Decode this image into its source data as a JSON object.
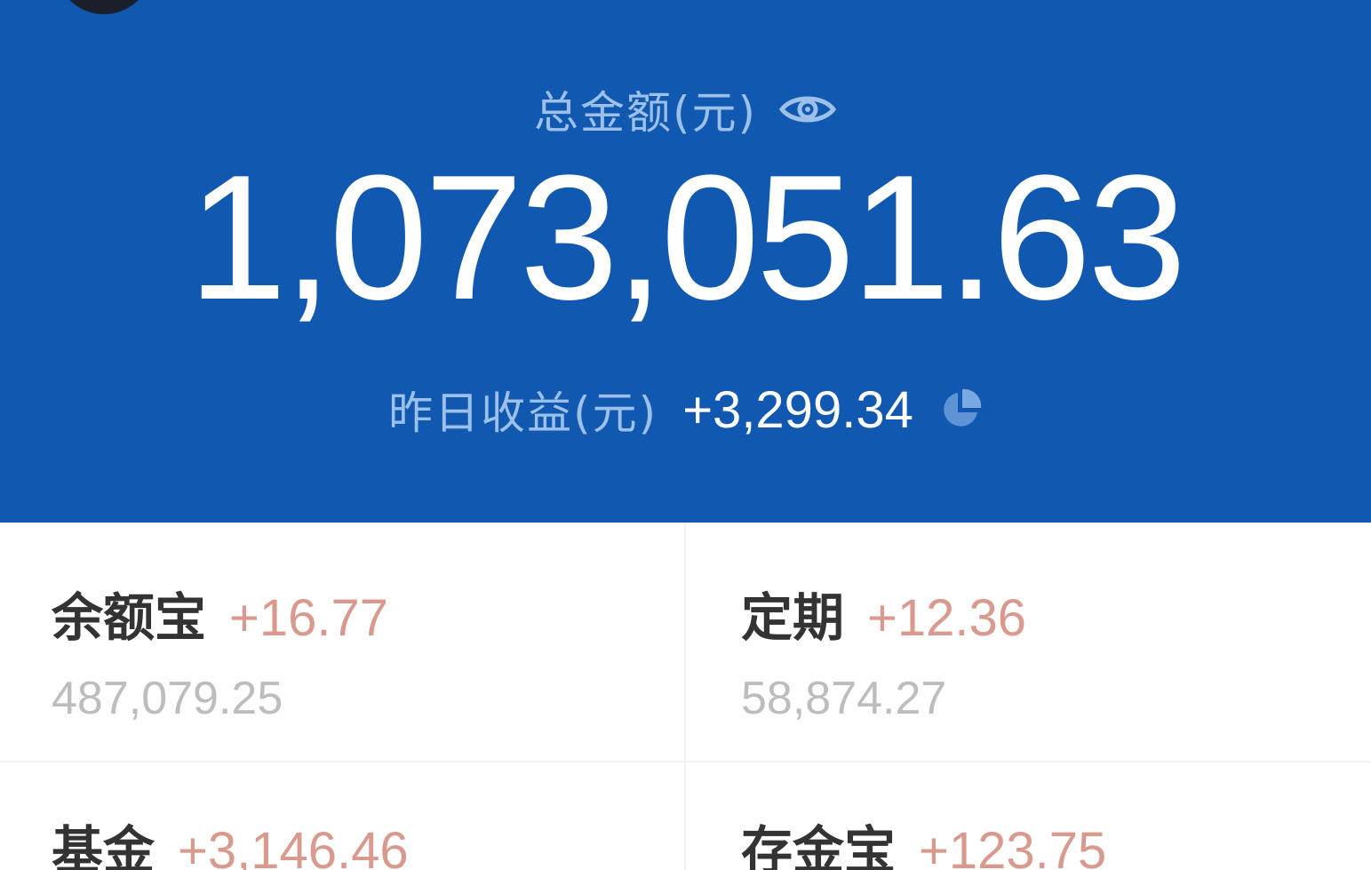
{
  "summary": {
    "total_label": "总金额(元)",
    "total_amount": "1,073,051.63",
    "yesterday_label": "昨日收益(元)",
    "yesterday_value": "+3,299.34"
  },
  "icons": {
    "visibility": "eye-icon",
    "analysis": "pie-chart-icon"
  },
  "colors": {
    "header_bg": "#1159b0",
    "label_text": "#9cc0ea",
    "gain_text": "#d99a8d",
    "balance_text": "#bdbdbd"
  },
  "assets": [
    {
      "name": "余额宝",
      "gain": "+16.77",
      "balance": "487,079.25"
    },
    {
      "name": "定期",
      "gain": "+12.36",
      "balance": "58,874.27"
    },
    {
      "name": "基金",
      "gain": "+3,146.46",
      "balance": ""
    },
    {
      "name": "存金宝",
      "gain": "+123.75",
      "balance": ""
    }
  ]
}
